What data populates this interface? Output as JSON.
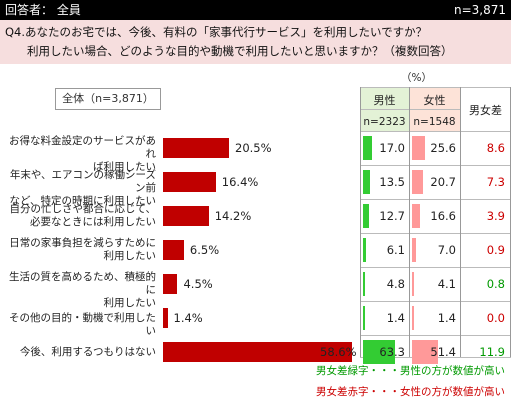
{
  "header": {
    "respondents": "回答者： 全員",
    "total_n": "n=3,871"
  },
  "question": {
    "line1": "Q4.あなたのお宅では、今後、有料の「家事代行サービス」を利用したいですか？",
    "line2": "利用したい場合、どのような目的や動機で利用したいと思いますか？（複数回答）"
  },
  "total_label": "全体（n=3,871）",
  "unit": "（%）",
  "columns": {
    "male": "男性",
    "male_n": "n=2323",
    "female": "女性",
    "female_n": "n=1548",
    "diff": "男女差"
  },
  "colors": {
    "bar": "#c00000",
    "male": "#33cc33",
    "female": "#ff9999",
    "diff_red": "#cc0000",
    "diff_green": "#009900"
  },
  "chart_data": {
    "type": "bar",
    "categories": [
      "お得な料金設定のサービスがあれば利用したい",
      "年末や、エアコンの稼働シーズン前など、特定の時期に利用したい",
      "自分の忙しさや都合に応じて、必要なときには利用したい",
      "日常の家事負担を減らすために利用したい",
      "生活の質を高めるため、積極的に利用したい",
      "その他の目的・動機で利用したい",
      "今後、利用するつもりはない"
    ],
    "category_lines": [
      [
        "お得な料金設定のサービスがあれ",
        "ば利用したい"
      ],
      [
        "年末や、エアコンの稼働シーズン前",
        "など、特定の時期に利用したい"
      ],
      [
        "自分の忙しさや都合に応じて、",
        "必要なときには利用したい"
      ],
      [
        "日常の家事負担を減らすために",
        "利用したい"
      ],
      [
        "生活の質を高めるため、積極的に",
        "利用したい"
      ],
      [
        "その他の目的・動機で利用したい"
      ],
      [
        "今後、利用するつもりはない"
      ]
    ],
    "series": [
      {
        "name": "全体（n=3,871）",
        "values": [
          20.5,
          16.4,
          14.2,
          6.5,
          4.5,
          1.4,
          58.6
        ],
        "labels": [
          "20.5%",
          "16.4%",
          "14.2%",
          "6.5%",
          "4.5%",
          "1.4%",
          "58.6%"
        ]
      },
      {
        "name": "男性",
        "values": [
          17.0,
          13.5,
          12.7,
          6.1,
          4.8,
          1.4,
          63.3
        ],
        "labels": [
          "17.0",
          "13.5",
          "12.7",
          "6.1",
          "4.8",
          "1.4",
          "63.3"
        ]
      },
      {
        "name": "女性",
        "values": [
          25.6,
          20.7,
          16.6,
          7.0,
          4.1,
          1.4,
          51.4
        ],
        "labels": [
          "25.6",
          "20.7",
          "16.6",
          "7.0",
          "4.1",
          "1.4",
          "51.4"
        ]
      },
      {
        "name": "男女差",
        "values": [
          8.6,
          7.3,
          3.9,
          0.9,
          0.8,
          0.0,
          11.9
        ],
        "labels": [
          "8.6",
          "7.3",
          "3.9",
          "0.9",
          "0.8",
          "0.0",
          "11.9"
        ]
      }
    ],
    "diff_color": [
      "red",
      "red",
      "red",
      "red",
      "green",
      "red",
      "green"
    ],
    "ylabel": "（%）"
  },
  "notes": {
    "green": "男女差緑字・・・男性の方が数値が高い",
    "red": "男女差赤字・・・女性の方が数値が高い"
  }
}
